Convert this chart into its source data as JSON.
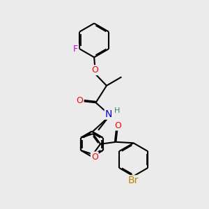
{
  "bg_color": "#ebebeb",
  "bond_color": "#000000",
  "bond_width": 1.5,
  "dbo": 0.055,
  "atom_colors": {
    "O": "#ff0000",
    "N": "#0000cd",
    "F": "#cc00cc",
    "Br": "#b8860b",
    "H": "#2e8b57",
    "C": "#000000"
  },
  "fs": 8.5
}
